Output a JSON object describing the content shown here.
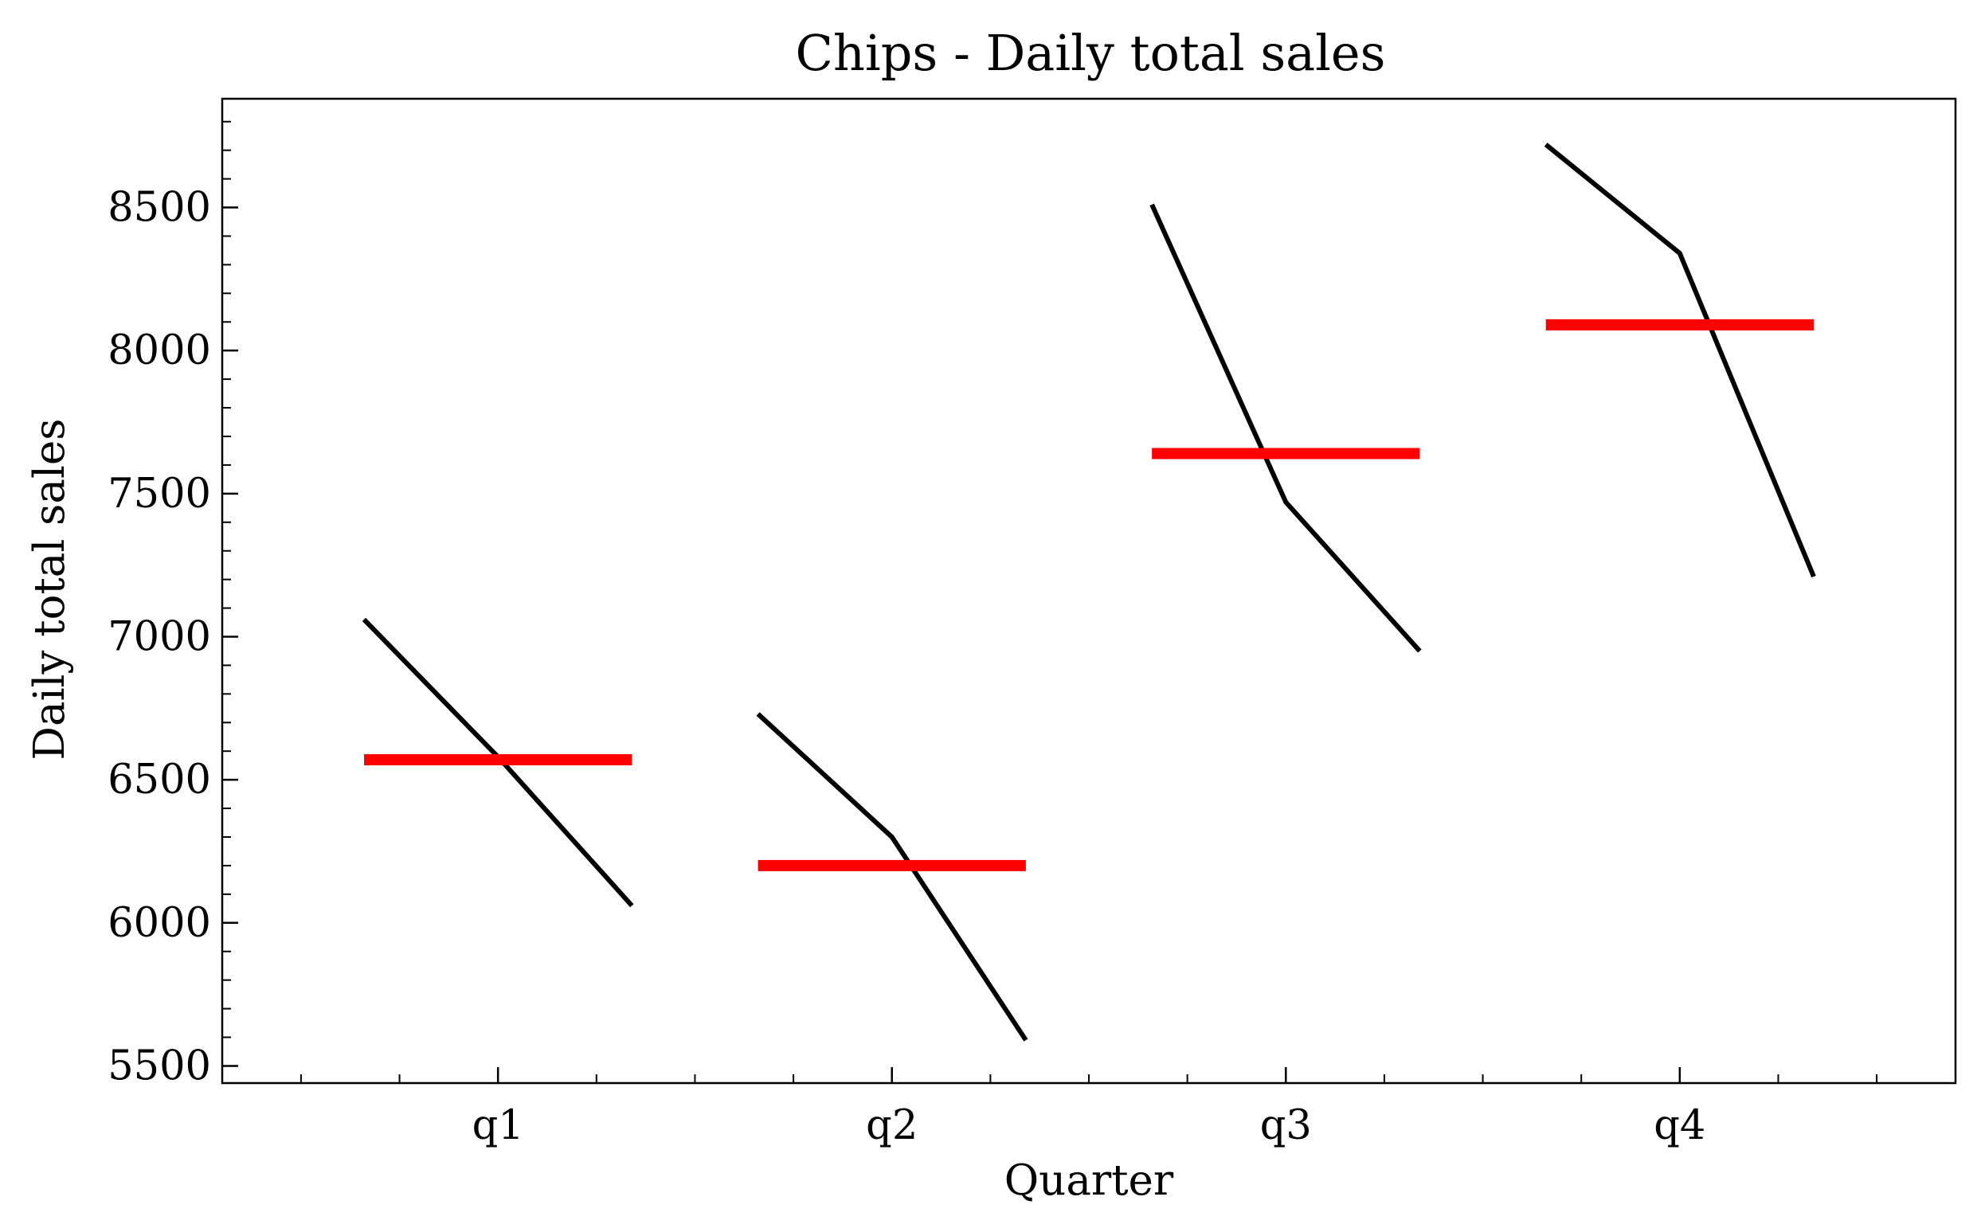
{
  "chart_data": {
    "type": "line",
    "title": "Chips - Daily total sales",
    "xlabel": "Quarter",
    "ylabel": "Daily total sales",
    "categories": [
      "q1",
      "q2",
      "q3",
      "q4"
    ],
    "ylim": [
      5440,
      8880
    ],
    "y_ticks": [
      5500,
      6000,
      6500,
      7000,
      7500,
      8000,
      8500
    ],
    "y_tick_labels": [
      "5500",
      "6000",
      "6500",
      "7000",
      "7500",
      "8000",
      "8500"
    ],
    "grid": false,
    "quarter_lines": [
      {
        "quarter": "q1",
        "values": [
          7060,
          6580,
          6060
        ]
      },
      {
        "quarter": "q2",
        "values": [
          6730,
          6300,
          5590
        ]
      },
      {
        "quarter": "q3",
        "values": [
          8510,
          7470,
          6950
        ]
      },
      {
        "quarter": "q4",
        "values": [
          8720,
          8340,
          7210
        ]
      }
    ],
    "means": [
      {
        "quarter": "q1",
        "value": 6570
      },
      {
        "quarter": "q2",
        "value": 6200
      },
      {
        "quarter": "q3",
        "value": 7640
      },
      {
        "quarter": "q4",
        "value": 8090
      }
    ],
    "colors": {
      "line": "#000000",
      "mean": "#ff0000",
      "axes": "#000000",
      "background": "#ffffff"
    }
  }
}
